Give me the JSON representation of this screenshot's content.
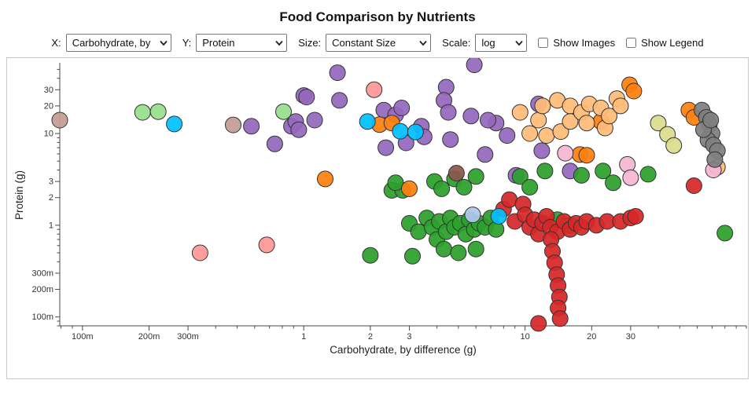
{
  "title": "Food Comparison by Nutrients",
  "controls": {
    "x": {
      "label": "X:",
      "value": "Carbohydrate, by"
    },
    "y": {
      "label": "Y:",
      "value": "Protein"
    },
    "size": {
      "label": "Size:",
      "value": "Constant Size"
    },
    "scale": {
      "label": "Scale:",
      "value": "log"
    },
    "show_images": {
      "label": "Show Images",
      "checked": false
    },
    "show_legend": {
      "label": "Show Legend",
      "checked": false
    }
  },
  "chart_data": {
    "type": "scatter",
    "title": "Food Comparison by Nutrients",
    "xlabel": "Carbohydrate, by difference (g)",
    "ylabel": "Protein (g)",
    "x_scale": "log",
    "y_scale": "log",
    "xlim": [
      0.079,
      100
    ],
    "ylim": [
      0.08,
      59
    ],
    "grid": false,
    "legend_visible": false,
    "point_radius": 10,
    "axis_color": "#4a4a4a",
    "point_stroke": "#333333",
    "x_ticks": [
      {
        "v": 0.1,
        "t": "100m"
      },
      {
        "v": 0.2,
        "t": "200m"
      },
      {
        "v": 0.3,
        "t": "300m"
      },
      {
        "v": 1,
        "t": "1"
      },
      {
        "v": 2,
        "t": "2"
      },
      {
        "v": 3,
        "t": "3"
      },
      {
        "v": 10,
        "t": "10"
      },
      {
        "v": 20,
        "t": "20"
      },
      {
        "v": 30,
        "t": "30"
      }
    ],
    "y_ticks": [
      {
        "v": 0.1,
        "t": "100m"
      },
      {
        "v": 0.2,
        "t": "200m"
      },
      {
        "v": 0.3,
        "t": "300m"
      },
      {
        "v": 1,
        "t": "1"
      },
      {
        "v": 2,
        "t": "2"
      },
      {
        "v": 3,
        "t": "3"
      },
      {
        "v": 10,
        "t": "10"
      },
      {
        "v": 20,
        "t": "20"
      },
      {
        "v": 30,
        "t": "30"
      }
    ],
    "series": [
      {
        "name": "group-purple",
        "color": "#9467bd",
        "points": [
          [
            5.9,
            56
          ],
          [
            1.42,
            46
          ],
          [
            4.4,
            32
          ],
          [
            1.0,
            26
          ],
          [
            1.45,
            23
          ],
          [
            2.3,
            18
          ],
          [
            2.6,
            16
          ],
          [
            4.3,
            23
          ],
          [
            4.5,
            17
          ],
          [
            5.7,
            15.5
          ],
          [
            7.4,
            13
          ],
          [
            11.5,
            21
          ],
          [
            0.58,
            12
          ],
          [
            0.74,
            7.7
          ],
          [
            0.88,
            12
          ],
          [
            0.92,
            13.5
          ],
          [
            0.95,
            11
          ],
          [
            1.03,
            25
          ],
          [
            1.12,
            14
          ],
          [
            2.77,
            19
          ],
          [
            2.9,
            7.9
          ],
          [
            2.35,
            7.0
          ],
          [
            6.6,
            5.9
          ],
          [
            9.1,
            3.5
          ],
          [
            11.9,
            6.5
          ],
          [
            3.4,
            12
          ],
          [
            3.5,
            9.2
          ],
          [
            4.6,
            8.6
          ],
          [
            16,
            3.9
          ],
          [
            6.8,
            14
          ],
          [
            8.3,
            9.5
          ]
        ]
      },
      {
        "name": "group-green",
        "color": "#2ca02c",
        "points": [
          [
            2.5,
            2.4
          ],
          [
            2.8,
            2.4
          ],
          [
            2.6,
            2.9
          ],
          [
            3.9,
            3.0
          ],
          [
            4.2,
            2.5
          ],
          [
            4.8,
            3.2
          ],
          [
            5.3,
            2.6
          ],
          [
            6.0,
            3.4
          ],
          [
            9.5,
            3.4
          ],
          [
            10.5,
            2.6
          ],
          [
            12.3,
            3.9
          ],
          [
            18,
            3.5
          ],
          [
            22.5,
            3.9
          ],
          [
            25,
            2.9
          ],
          [
            36,
            3.6
          ],
          [
            3.0,
            1.05
          ],
          [
            3.3,
            0.85
          ],
          [
            3.6,
            1.2
          ],
          [
            3.8,
            0.95
          ],
          [
            4.0,
            0.7
          ],
          [
            4.1,
            1.1
          ],
          [
            4.4,
            0.85
          ],
          [
            4.6,
            1.2
          ],
          [
            4.8,
            0.95
          ],
          [
            5.1,
            1.05
          ],
          [
            5.4,
            0.8
          ],
          [
            5.6,
            1.15
          ],
          [
            5.9,
            0.9
          ],
          [
            6.2,
            1.05
          ],
          [
            6.6,
            0.95
          ],
          [
            7.0,
            1.2
          ],
          [
            7.4,
            0.9
          ],
          [
            14,
            1.15
          ],
          [
            16,
            1.0
          ],
          [
            4.3,
            0.55
          ],
          [
            5.0,
            0.5
          ],
          [
            6.0,
            0.55
          ],
          [
            2.0,
            0.47
          ],
          [
            3.1,
            0.46
          ],
          [
            80,
            0.82
          ]
        ]
      },
      {
        "name": "group-red",
        "color": "#d62728",
        "points": [
          [
            8.0,
            1.5
          ],
          [
            8.5,
            1.9
          ],
          [
            9.0,
            1.1
          ],
          [
            9.8,
            1.7
          ],
          [
            10,
            1.3
          ],
          [
            10.5,
            0.95
          ],
          [
            11,
            1.15
          ],
          [
            11.5,
            0.8
          ],
          [
            12,
            1.05
          ],
          [
            12.5,
            1.25
          ],
          [
            13,
            0.95
          ],
          [
            14,
            0.85
          ],
          [
            15,
            1.1
          ],
          [
            16,
            0.9
          ],
          [
            17,
            1.05
          ],
          [
            18,
            0.95
          ],
          [
            19,
            1.1
          ],
          [
            21,
            1.0
          ],
          [
            23.5,
            1.1
          ],
          [
            27,
            1.1
          ],
          [
            30,
            1.2
          ],
          [
            31.6,
            1.25
          ],
          [
            13.1,
            0.7
          ],
          [
            13.3,
            0.52
          ],
          [
            13.6,
            0.39
          ],
          [
            13.9,
            0.29
          ],
          [
            14.1,
            0.22
          ],
          [
            14.3,
            0.165
          ],
          [
            14.1,
            0.125
          ],
          [
            14.4,
            0.096
          ],
          [
            11.5,
            0.085
          ],
          [
            58,
            2.7
          ]
        ]
      },
      {
        "name": "group-orange",
        "color": "#ff7f0e",
        "points": [
          [
            1.25,
            3.2
          ],
          [
            3.0,
            2.5
          ],
          [
            2.2,
            12.5
          ],
          [
            2.5,
            13
          ],
          [
            17.7,
            5.9
          ],
          [
            19,
            5.8
          ],
          [
            22,
            13.5
          ],
          [
            29.7,
            34
          ],
          [
            31,
            29
          ],
          [
            55,
            18
          ],
          [
            58,
            15
          ]
        ]
      },
      {
        "name": "group-peach",
        "color": "#ffbb78",
        "points": [
          [
            9.5,
            17
          ],
          [
            10.5,
            10
          ],
          [
            11.5,
            14
          ],
          [
            12,
            20
          ],
          [
            12.5,
            9.5
          ],
          [
            14,
            23
          ],
          [
            14.5,
            10.5
          ],
          [
            16,
            20
          ],
          [
            16,
            13.5
          ],
          [
            18,
            17
          ],
          [
            19,
            13
          ],
          [
            19.5,
            21
          ],
          [
            22,
            19
          ],
          [
            23,
            11.5
          ],
          [
            24,
            15.5
          ],
          [
            26,
            24
          ],
          [
            27,
            20
          ],
          [
            74,
            4.3
          ]
        ]
      },
      {
        "name": "group-skyblue",
        "color": "#00bfff",
        "points": [
          [
            0.26,
            12.7
          ],
          [
            1.94,
            13.5
          ],
          [
            2.73,
            10.6
          ],
          [
            3.2,
            10.4
          ],
          [
            7.6,
            1.25
          ]
        ]
      },
      {
        "name": "group-pink",
        "color": "#f7b6d2",
        "points": [
          [
            15.2,
            6.1
          ],
          [
            29,
            4.6
          ],
          [
            30,
            3.3
          ],
          [
            71,
            4.0
          ]
        ]
      },
      {
        "name": "group-salmon",
        "color": "#ff9896",
        "points": [
          [
            2.08,
            30
          ],
          [
            0.34,
            0.5
          ],
          [
            0.68,
            0.61
          ]
        ]
      },
      {
        "name": "group-gray",
        "color": "#7f7f7f",
        "points": [
          [
            63,
            18
          ],
          [
            66,
            15
          ],
          [
            68,
            12.5
          ],
          [
            70,
            10
          ],
          [
            67,
            8.5
          ],
          [
            71,
            7.5
          ],
          [
            74,
            6.5
          ],
          [
            64,
            11
          ],
          [
            72,
            5.2
          ],
          [
            69,
            14
          ]
        ]
      },
      {
        "name": "group-khaki",
        "color": "#dbdb8d",
        "points": [
          [
            40,
            13
          ],
          [
            44,
            9.8
          ],
          [
            47,
            7.4
          ]
        ]
      },
      {
        "name": "group-rosybrown",
        "color": "#c49c94",
        "points": [
          [
            0.079,
            14
          ],
          [
            0.48,
            12.4
          ]
        ]
      },
      {
        "name": "group-brown",
        "color": "#8c564b",
        "points": [
          [
            4.9,
            3.7
          ]
        ]
      },
      {
        "name": "group-lightgreen",
        "color": "#98df8a",
        "points": [
          [
            0.187,
            17
          ],
          [
            0.22,
            17.3
          ],
          [
            0.81,
            17.3
          ]
        ]
      },
      {
        "name": "group-lightblue",
        "color": "#aec7e8",
        "points": [
          [
            5.8,
            1.3
          ]
        ]
      }
    ]
  }
}
